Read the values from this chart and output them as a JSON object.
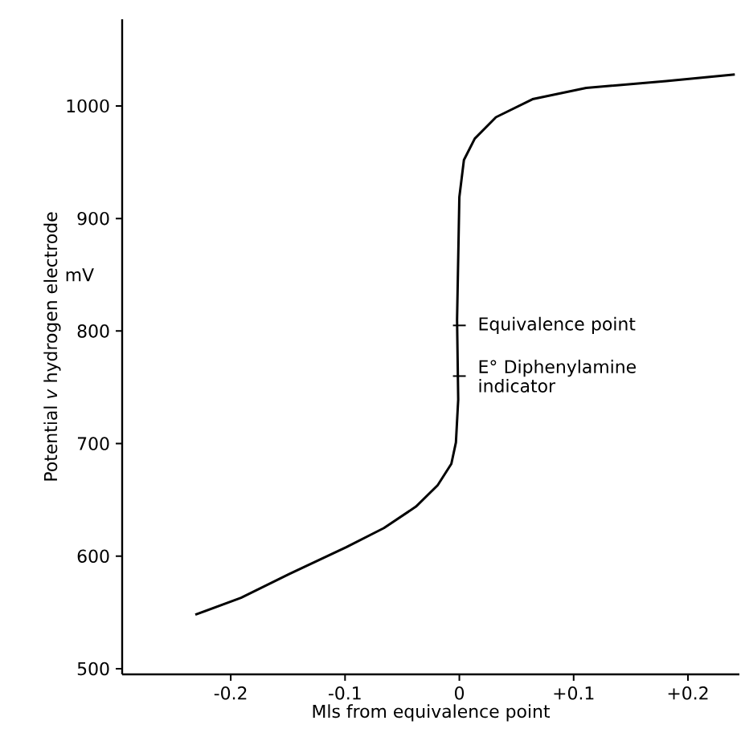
{
  "chart_data": {
    "type": "line",
    "xlabel": "Mls from equivalence point",
    "ylabel": "Potential *v* hydrogen electrode",
    "x": [
      -0.231,
      -0.191,
      -0.149,
      -0.099,
      -0.066,
      -0.038,
      -0.019,
      -0.007,
      -0.003,
      -0.001,
      -0.002,
      0.0,
      0.004,
      0.0135,
      0.032,
      0.064,
      0.111,
      0.181,
      0.241
    ],
    "values": [
      548,
      563,
      584,
      608,
      625,
      644,
      663,
      682,
      701,
      739,
      810,
      919,
      952,
      971,
      990,
      1006,
      1016,
      1022,
      1028
    ],
    "color": "#000000",
    "marker": "none",
    "line_style": "solid",
    "xlim": [
      -0.295,
      0.245
    ],
    "ylim": [
      495,
      1077
    ],
    "xticks": [
      -0.2,
      -0.1,
      0,
      {
        "value": 0.1,
        "label": "+0.1"
      },
      {
        "value": 0.2,
        "label": "+0.2"
      }
    ],
    "yticks": [
      500,
      600,
      700,
      800,
      900,
      1000
    ],
    "annotations": [
      "mV",
      {
        "text": "Equivalence point",
        "x": 0,
        "y": 805
      },
      {
        "text": "E° Diphenylamine indicator",
        "x": 0,
        "y": 760
      }
    ]
  }
}
